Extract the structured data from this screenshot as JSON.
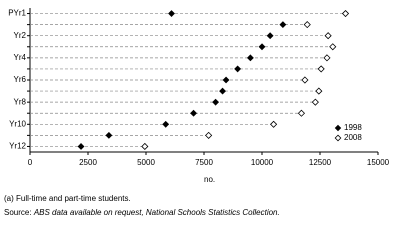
{
  "chart_data": {
    "type": "dot",
    "categories": [
      "PYr1",
      null,
      "Yr2",
      null,
      "Yr4",
      null,
      "Yr6",
      null,
      "Yr8",
      null,
      "Yr10",
      null,
      "Yr12"
    ],
    "series": [
      {
        "name": "1998",
        "color": "#000000",
        "marker": "filled-diamond",
        "values": [
          6100,
          10900,
          10350,
          10000,
          9500,
          8950,
          8450,
          8300,
          8000,
          7050,
          5850,
          3400,
          2200
        ]
      },
      {
        "name": "2008",
        "color": "#000000",
        "marker": "open-diamond",
        "values": [
          13600,
          11950,
          12850,
          13050,
          12800,
          12550,
          11850,
          12450,
          12300,
          11700,
          10500,
          7700,
          4950
        ]
      }
    ],
    "x_label": "no.",
    "xlim": [
      0,
      15000
    ],
    "xticks": [
      0,
      2500,
      5000,
      7500,
      10000,
      12500,
      15000
    ],
    "legend": "lower-right",
    "footnote": "(a) Full-time and part-time students.",
    "source_label": "Source:",
    "source_text": "ABS data available on request, National Schools Statistics Collection."
  }
}
